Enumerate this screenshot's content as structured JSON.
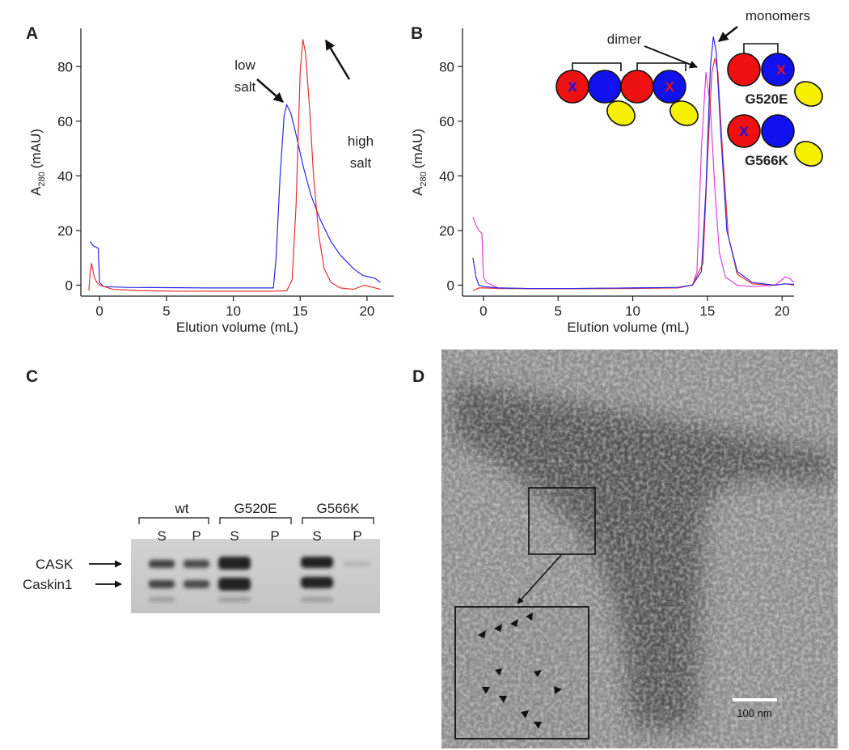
{
  "chart_data": [
    {
      "type": "line",
      "panel_label": "A",
      "x_label": "Elution volume (mL)",
      "y_label": {
        "main": "A",
        "sub": "280",
        "unit": "(mAU)"
      },
      "xlim": [
        -1.4,
        22
      ],
      "ylim": [
        -4,
        94
      ],
      "xticks": [
        0,
        5,
        10,
        15,
        20
      ],
      "yticks": [
        0,
        20,
        40,
        60,
        80
      ],
      "annotations": [
        [
          "low",
          "salt"
        ],
        [
          "high",
          "salt"
        ]
      ],
      "series": [
        {
          "color": "#2a2ae6",
          "x": [
            -0.7,
            -0.5,
            -0.3,
            -0.1,
            0,
            0.3,
            2,
            5,
            8,
            11,
            13,
            13.2,
            13.5,
            13.8,
            14,
            14.3,
            14.7,
            15.2,
            15.8,
            16.5,
            17.3,
            18,
            19,
            19.7,
            20.2,
            20.6,
            21
          ],
          "values": [
            16,
            14.5,
            14,
            13.5,
            1,
            -0.5,
            -0.8,
            -0.9,
            -1,
            -1,
            -1,
            10,
            40,
            62,
            66,
            63,
            55,
            44,
            33,
            24,
            16,
            11,
            6,
            3.5,
            3,
            2.5,
            1
          ]
        },
        {
          "color": "#e63030",
          "x": [
            -0.8,
            -0.7,
            -0.6,
            -0.4,
            -0.2,
            0,
            1,
            3,
            6,
            10,
            13,
            14,
            14.4,
            14.7,
            15,
            15.2,
            15.4,
            15.7,
            16,
            16.4,
            16.8,
            17.3,
            18,
            19,
            19.8,
            20.2,
            21
          ],
          "values": [
            -2,
            5,
            8,
            3,
            1,
            0,
            -1.5,
            -2,
            -2.2,
            -2.2,
            -2.2,
            -2,
            2,
            30,
            78,
            90,
            85,
            65,
            40,
            18,
            6,
            1,
            -1,
            -1.5,
            0,
            -0.5,
            -1.5
          ]
        }
      ]
    },
    {
      "type": "line",
      "panel_label": "B",
      "x_label": "Elution volume (mL)",
      "y_label": {
        "main": "A",
        "sub": "280",
        "unit": "(mAU)"
      },
      "xlim": [
        -1.4,
        20.8
      ],
      "ylim": [
        -4,
        94
      ],
      "xticks": [
        0,
        5,
        10,
        15,
        20
      ],
      "yticks": [
        0,
        20,
        40,
        60,
        80
      ],
      "annotations": [
        "dimer",
        "monomers"
      ],
      "schematic_labels": [
        "G520E",
        "G566K"
      ],
      "mutation_mark": "X",
      "series": [
        {
          "color": "#e040e0",
          "x": [
            -0.7,
            -0.5,
            -0.3,
            -0.1,
            0,
            0.2,
            1,
            3,
            6,
            10,
            13,
            14,
            14.3,
            14.6,
            14.9,
            15.2,
            15.5,
            15.8,
            16.2,
            17,
            18,
            19.5,
            20,
            20.2,
            20.5,
            20.8
          ],
          "values": [
            25,
            22,
            20,
            19,
            3,
            1,
            -1,
            -1.2,
            -1.2,
            -1,
            -1,
            0,
            5,
            50,
            78,
            65,
            35,
            12,
            3,
            0,
            -0.5,
            0,
            2,
            3,
            2.5,
            1
          ]
        },
        {
          "color": "#e63030",
          "x": [
            -0.7,
            -0.5,
            -0.3,
            0,
            1,
            3,
            6,
            10,
            13,
            14,
            14.7,
            15,
            15.3,
            15.5,
            15.7,
            16,
            16.4,
            17,
            18,
            19.5,
            20.2,
            20.8
          ],
          "values": [
            -2,
            -1.5,
            -1,
            -1,
            -1.2,
            -1.3,
            -1.3,
            -1.2,
            -1,
            0,
            8,
            45,
            78,
            83,
            78,
            50,
            18,
            4,
            0.5,
            0,
            0.5,
            0
          ]
        },
        {
          "color": "#2a2ae6",
          "x": [
            -0.7,
            -0.5,
            -0.3,
            0,
            1,
            3,
            6,
            10,
            13,
            14,
            14.6,
            14.9,
            15.2,
            15.4,
            15.6,
            15.9,
            16.3,
            17,
            18,
            19.5,
            20.2,
            20.8
          ],
          "values": [
            10,
            3,
            0,
            -0.5,
            -1,
            -1.2,
            -1.2,
            -1,
            -0.8,
            0,
            5,
            35,
            80,
            91,
            85,
            55,
            20,
            5,
            1,
            0,
            0.5,
            0.3
          ]
        }
      ]
    }
  ],
  "gel": {
    "panel_label": "C",
    "groups": [
      "wt",
      "G520E",
      "G566K"
    ],
    "lanes": [
      "S",
      "P"
    ],
    "bands": [
      "CASK",
      "Caskin1"
    ]
  },
  "micrograph": {
    "panel_label": "D",
    "scale_bar": "100 nm"
  }
}
